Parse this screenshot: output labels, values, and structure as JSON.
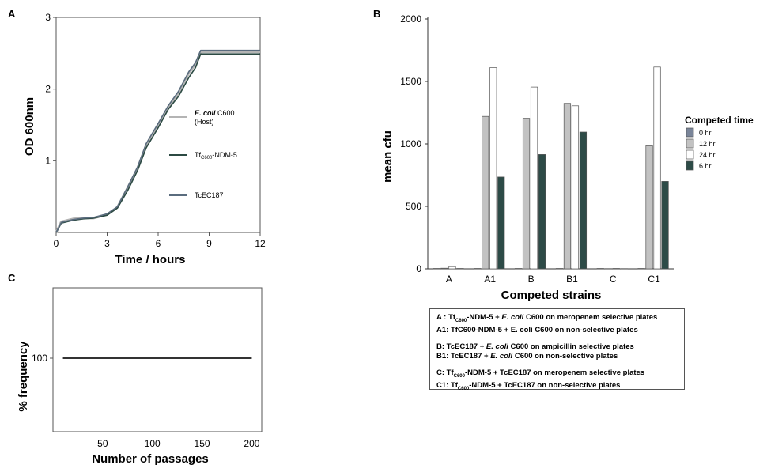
{
  "panels": {
    "a": "A",
    "b": "B",
    "c": "C"
  },
  "chart_data": [
    {
      "type": "line",
      "xlabel": "Time / hours",
      "ylabel": "OD 600nm",
      "xlim": [
        0,
        12
      ],
      "ylim": [
        0,
        3
      ],
      "x_ticks": [
        "0",
        "3",
        "6",
        "9",
        "12"
      ],
      "y_ticks": [
        "1",
        "2",
        "3"
      ],
      "series": [
        {
          "name": "E. coli C600 (Host)",
          "name_italic": "E. coli",
          "name_rest": " C600",
          "name_line2": "(Host)",
          "color": "#b4b4b4",
          "x": [
            0,
            0.3,
            1,
            1.6,
            2.2,
            3,
            3.6,
            4.2,
            4.8,
            5.3,
            6,
            6.6,
            7.2,
            7.8,
            8.2,
            8.5,
            9,
            12
          ],
          "y": [
            0,
            0.15,
            0.19,
            0.2,
            0.2,
            0.25,
            0.35,
            0.62,
            0.9,
            1.22,
            1.5,
            1.75,
            1.95,
            2.22,
            2.35,
            2.52,
            2.52,
            2.52
          ]
        },
        {
          "name": "TfC600-NDM-5",
          "name_main": "Tf",
          "name_sub": "C600",
          "name_tail": "-NDM-5",
          "color": "#2c4a43",
          "x": [
            0,
            0.3,
            1,
            1.6,
            2.2,
            3,
            3.6,
            4.2,
            4.8,
            5.3,
            6,
            6.6,
            7.2,
            7.8,
            8.2,
            8.5,
            9,
            12
          ],
          "y": [
            0,
            0.13,
            0.17,
            0.19,
            0.2,
            0.24,
            0.34,
            0.58,
            0.87,
            1.18,
            1.46,
            1.72,
            1.9,
            2.16,
            2.3,
            2.49,
            2.49,
            2.49
          ]
        },
        {
          "name": "TcEC187",
          "color": "#5a6c7e",
          "x": [
            0,
            0.3,
            1,
            1.6,
            2.2,
            3,
            3.6,
            4.2,
            4.8,
            5.3,
            6,
            6.6,
            7.2,
            7.8,
            8.2,
            8.5,
            9,
            12
          ],
          "y": [
            0,
            0.14,
            0.18,
            0.2,
            0.21,
            0.26,
            0.36,
            0.63,
            0.92,
            1.24,
            1.52,
            1.77,
            1.97,
            2.24,
            2.37,
            2.54,
            2.54,
            2.54
          ]
        }
      ]
    },
    {
      "type": "bar",
      "xlabel": "Competed strains",
      "ylabel": "mean cfu",
      "ylim": [
        0,
        2000
      ],
      "y_ticks": [
        "0",
        "500",
        "1000",
        "1500",
        "2000"
      ],
      "categories": [
        "A",
        "A1",
        "B",
        "B1",
        "C",
        "C1"
      ],
      "legend_title": "Competed time",
      "legend_position": "right",
      "series": [
        {
          "name": "0 hr",
          "color": "#7a8599",
          "values": [
            0,
            0,
            0,
            0,
            0,
            0
          ]
        },
        {
          "name": "12 hr",
          "color": "#c2c2c2",
          "values": [
            5,
            1220,
            1205,
            1325,
            2,
            985
          ]
        },
        {
          "name": "24 hr",
          "color": "#ffffff",
          "values": [
            18,
            1610,
            1455,
            1305,
            3,
            1615
          ]
        },
        {
          "name": "6 hr",
          "color": "#2d4b47",
          "values": [
            3,
            735,
            915,
            1095,
            2,
            700
          ]
        }
      ]
    },
    {
      "type": "line",
      "xlabel": "Number of passages",
      "ylabel": "% frequency",
      "xlim": [
        0,
        200
      ],
      "x_ticks": [
        "50",
        "100",
        "150",
        "200"
      ],
      "y_ticks": [
        "100"
      ],
      "series": [
        {
          "color": "#333333",
          "x": [
            10,
            200
          ],
          "y": [
            100,
            100
          ]
        }
      ]
    }
  ],
  "caption_lines": [
    [
      {
        "t": "A : Tf"
      },
      {
        "t": "C600",
        "sub": true
      },
      {
        "t": "-NDM-5 + "
      },
      {
        "t": "E. coli",
        "it": true
      },
      {
        "t": " C600 on meropenem selective plates"
      }
    ],
    [
      {
        "t": "A1: TfC600-NDM-5 + E. coli  C600 on non-selective  plates"
      }
    ],
    "gap",
    [
      {
        "t": "B: TcEC187 + "
      },
      {
        "t": "E. coli",
        "it": true
      },
      {
        "t": " C600 on ampicillin  selective plates"
      }
    ],
    [
      {
        "t": "B1: TcEC187 + "
      },
      {
        "t": "E. coli",
        "it": true
      },
      {
        "t": " C600 on non-selective plates"
      }
    ],
    "gap",
    [
      {
        "t": "C: Tf"
      },
      {
        "t": "C600",
        "sub": true
      },
      {
        "t": "-NDM-5 + TcEC187 on meropenem selective plates"
      }
    ],
    [
      {
        "t": "C1: Tf"
      },
      {
        "t": "C600",
        "sub": true
      },
      {
        "t": "-NDM-5 + TcEC187 on non-selective plates"
      }
    ]
  ]
}
